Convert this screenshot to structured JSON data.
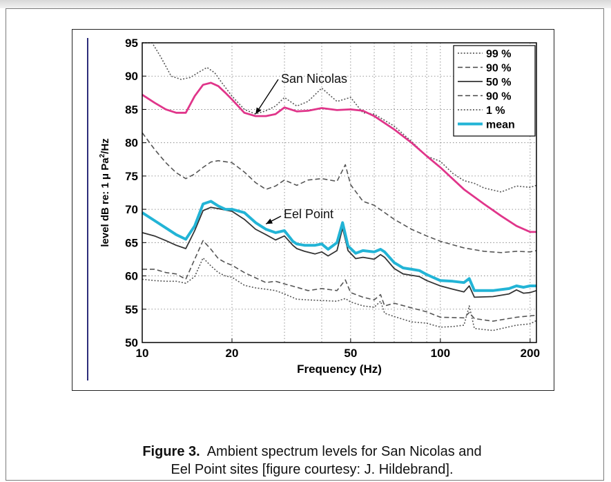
{
  "chart_data": {
    "type": "line",
    "xlabel": "Frequency (Hz)",
    "ylabel": "level dB re: 1 µ Pa²/Hz",
    "ylabel_base": "level dB re: 1 μ Pa",
    "ylabel_sup": "2",
    "ylabel_tail": "/Hz",
    "x_scale": "log",
    "xlim": [
      10,
      210
    ],
    "ylim": [
      50,
      95
    ],
    "x_ticks": [
      10,
      20,
      50,
      100,
      200
    ],
    "x_tick_labels": [
      "10",
      "20",
      "50",
      "100",
      "200"
    ],
    "y_ticks": [
      50,
      55,
      60,
      65,
      70,
      75,
      80,
      85,
      90,
      95
    ],
    "y_tick_labels": [
      "50",
      "55",
      "60",
      "65",
      "70",
      "75",
      "80",
      "85",
      "90",
      "95"
    ],
    "grid": true,
    "legend_position": "top-right",
    "legend": [
      {
        "label": "99 %",
        "style": "dotted"
      },
      {
        "label": "90 %",
        "style": "dashed"
      },
      {
        "label": "50 %",
        "style": "solid"
      },
      {
        "label": "90 %",
        "style": "dashed"
      },
      {
        "label": "1 %",
        "style": "dotted"
      },
      {
        "label": "mean",
        "style": "solid-thick"
      }
    ],
    "annotations": [
      {
        "text": "San Nicolas",
        "points_to": [
          24,
          84.2
        ]
      },
      {
        "text": "Eel Point",
        "points_to": [
          26,
          67.5
        ]
      }
    ],
    "series": [
      {
        "style": "mean-sn",
        "color": "#e0358a",
        "x": [
          10,
          11,
          12,
          13,
          14,
          15,
          16,
          17,
          18,
          19,
          20,
          22,
          24,
          26,
          28,
          30,
          33,
          36,
          40,
          45,
          50,
          55,
          60,
          70,
          80,
          90,
          100,
          120,
          140,
          160,
          180,
          200,
          210
        ],
        "values": [
          87.2,
          86,
          85,
          84.5,
          84.5,
          87,
          88.7,
          89,
          88.5,
          87.5,
          86.5,
          84.5,
          84,
          84,
          84.3,
          85.3,
          84.7,
          84.8,
          85.2,
          84.9,
          85,
          84.8,
          84,
          82,
          80,
          78,
          76.3,
          73,
          70.8,
          69,
          67.5,
          66.6,
          66.6
        ]
      },
      {
        "style": "p99-sn",
        "color": "#555555",
        "x": [
          10,
          10.8,
          11.5,
          12.5,
          13.5,
          14.5,
          15.5,
          16.5,
          17.5,
          18.5,
          20,
          22,
          24,
          26,
          28,
          30,
          33,
          36,
          40,
          45,
          50,
          55,
          60,
          70,
          80,
          90,
          100,
          110,
          120,
          130,
          140,
          160,
          180,
          200,
          210
        ],
        "values": [
          98,
          96,
          93,
          90,
          89.5,
          89.8,
          90.6,
          91.3,
          90.5,
          89,
          87,
          85,
          84.3,
          84.8,
          85.5,
          86.8,
          85.5,
          86.2,
          88.2,
          86.2,
          86.8,
          84.5,
          84.3,
          82.5,
          80.2,
          78,
          77.2,
          75.4,
          74.3,
          73.9,
          73.2,
          72.6,
          73.5,
          73.3,
          73.6
        ]
      },
      {
        "style": "p90-sn",
        "color": "#555555",
        "x": [
          10,
          11,
          12,
          13,
          14,
          15,
          16,
          17,
          18,
          20,
          22,
          24,
          26,
          28,
          30,
          33,
          36,
          40,
          45,
          48,
          50,
          55,
          60,
          70,
          80,
          90,
          100,
          120,
          140,
          160,
          180,
          200,
          210
        ],
        "values": [
          81.5,
          79,
          77,
          75.5,
          74.6,
          75.3,
          76.3,
          77.1,
          77.3,
          77,
          75.6,
          74,
          73,
          73.5,
          74.4,
          73.6,
          74.4,
          74.6,
          74.2,
          76.7,
          73.7,
          71.2,
          70.6,
          68.5,
          67,
          66,
          65.2,
          64.2,
          63.7,
          63.5,
          63.7,
          63.6,
          63.8
        ]
      },
      {
        "style": "mean-ep",
        "color": "#22b4d6",
        "x": [
          10,
          11,
          12,
          13,
          14,
          15,
          16,
          17,
          18,
          19,
          20,
          22,
          24,
          26,
          28,
          30,
          32,
          33,
          35,
          38,
          40,
          42,
          45,
          47,
          49,
          52,
          55,
          60,
          63,
          65,
          70,
          75,
          80,
          85,
          90,
          100,
          110,
          120,
          125,
          130,
          150,
          170,
          180,
          190,
          200,
          210
        ],
        "values": [
          69.5,
          68.3,
          67.2,
          66.2,
          65.5,
          67.5,
          70.8,
          71.2,
          70.5,
          70,
          70,
          69.5,
          68,
          67,
          66.5,
          66.8,
          65.2,
          64.8,
          64.6,
          64.6,
          64.8,
          64,
          65,
          68,
          64.5,
          63.4,
          63.8,
          63.6,
          64,
          63.6,
          62,
          61.2,
          61,
          60.8,
          60.2,
          59.3,
          59.2,
          59,
          59.6,
          57.8,
          57.8,
          58.1,
          58.5,
          58.3,
          58.5,
          58.5
        ]
      },
      {
        "style": "p50-ep",
        "color": "#333333",
        "x": [
          10,
          11,
          12,
          13,
          14,
          15,
          16,
          17,
          18,
          19,
          20,
          22,
          24,
          26,
          28,
          30,
          32,
          33,
          35,
          38,
          40,
          42,
          45,
          47,
          49,
          52,
          55,
          60,
          63,
          65,
          70,
          75,
          80,
          85,
          90,
          100,
          110,
          120,
          125,
          130,
          150,
          170,
          180,
          190,
          200,
          210
        ],
        "values": [
          66.5,
          66,
          65.3,
          64.6,
          64.1,
          66.8,
          69.8,
          70.3,
          70.1,
          69.9,
          69.7,
          68.5,
          67,
          66.2,
          65.4,
          66,
          64.6,
          64.1,
          63.7,
          63.3,
          63.6,
          63,
          63.8,
          67.2,
          63.8,
          62.6,
          62.8,
          62.5,
          63.2,
          62.8,
          61.1,
          60.3,
          60.1,
          59.9,
          59.3,
          58.5,
          58,
          57.6,
          58.5,
          56.8,
          56.9,
          57.3,
          57.9,
          57.4,
          57.5,
          57.8
        ]
      },
      {
        "style": "p90-ep",
        "color": "#555555",
        "x": [
          10,
          11,
          12,
          13,
          14,
          15,
          16,
          17,
          18,
          19,
          20,
          22,
          24,
          26,
          28,
          30,
          33,
          36,
          40,
          45,
          48,
          50,
          55,
          60,
          63,
          65,
          70,
          80,
          90,
          100,
          120,
          125,
          130,
          150,
          180,
          200,
          210
        ],
        "values": [
          61,
          61,
          60.5,
          60.3,
          59.5,
          62.5,
          65.3,
          64,
          62.6,
          62,
          61.6,
          60.5,
          59.7,
          59,
          59.2,
          58.8,
          58.3,
          57.8,
          58.1,
          57.8,
          59.4,
          57.5,
          56.8,
          56.4,
          57.2,
          55.5,
          55.9,
          55.2,
          54.6,
          53.8,
          53.7,
          54.5,
          53.6,
          53.2,
          53.8,
          54,
          54.1
        ]
      },
      {
        "style": "p1-ep",
        "color": "#555555",
        "x": [
          10,
          11,
          12,
          13,
          14,
          15,
          16,
          17,
          18,
          19,
          20,
          22,
          24,
          26,
          28,
          30,
          33,
          36,
          40,
          45,
          48,
          50,
          55,
          60,
          63,
          65,
          70,
          80,
          90,
          100,
          110,
          120,
          125,
          130,
          150,
          180,
          200,
          210
        ],
        "values": [
          59.5,
          59.3,
          59.2,
          59.2,
          58.9,
          59.9,
          62.7,
          61.5,
          60.5,
          60,
          59.8,
          58.6,
          58.2,
          58,
          57.8,
          57.3,
          56.5,
          56.4,
          56.3,
          56.2,
          56.6,
          56.1,
          55.5,
          55.3,
          56.2,
          54.4,
          53.9,
          53.1,
          52.9,
          52.3,
          52.4,
          52.6,
          55.5,
          52.1,
          51.8,
          52.6,
          52.8,
          53.3
        ]
      }
    ]
  },
  "caption": {
    "label": "Figure 3.",
    "line1": "Ambient spectrum levels for San Nicolas and",
    "line2": "Eel Point sites [figure courtesy: J. Hildebrand]."
  }
}
